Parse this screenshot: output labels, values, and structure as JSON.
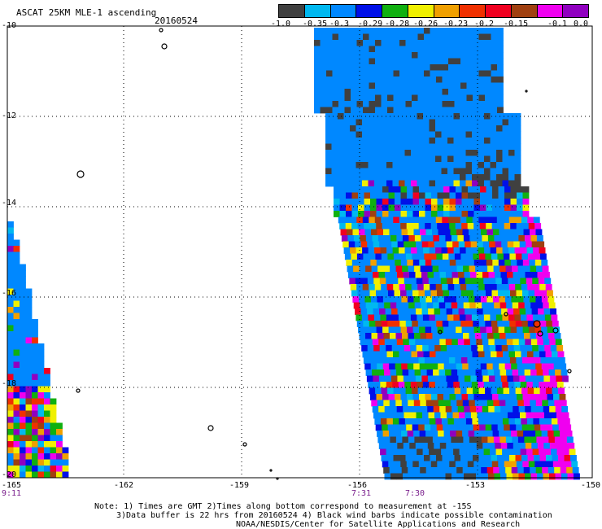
{
  "header": {
    "title": "ASCAT 25KM MLE-1 ascending",
    "date": "20160524"
  },
  "legend": {
    "colors": [
      "#404040",
      "#00b8f0",
      "#0088ff",
      "#0010e8",
      "#10b010",
      "#f0f000",
      "#f0a000",
      "#f03000",
      "#f00020",
      "#a04010",
      "#f000f0",
      "#9000c0"
    ],
    "labels": [
      "-1.0",
      "-0.35",
      "-0.3",
      "-0.29",
      "-0.28",
      "-0.26",
      "-0.23",
      "-0.2",
      "-0.15",
      "-0.1",
      "0.0"
    ]
  },
  "axes": {
    "lat_labels": [
      "-10",
      "-12",
      "-14",
      "-16",
      "-18",
      "-20"
    ],
    "lon_labels": [
      "-165",
      "-162",
      "-159",
      "-156",
      "-153",
      "-150"
    ]
  },
  "times": [
    {
      "label": "9:11"
    },
    {
      "label": "7:31"
    },
    {
      "label": "7:30"
    }
  ],
  "notes": {
    "line1": "Note: 1) Times are GMT 2)Times along bottom correspond to measurement at -15S",
    "line2": "3)Data buffer is 22 hrs from 20160524 4) Black wind barbs indicate possible contamination",
    "line3": "NOAA/NESDIS/Center for Satellite Applications and Research"
  }
}
